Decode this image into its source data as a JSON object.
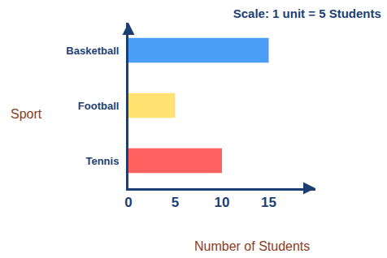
{
  "chart_data": {
    "type": "bar",
    "orientation": "horizontal",
    "title": "Scale: 1 unit = 5 Students",
    "x_label": "Number of Students",
    "y_label": "Sport",
    "categories": [
      "Basketball",
      "Football",
      "Tennis"
    ],
    "values": [
      15,
      5,
      10
    ],
    "colors": [
      "#4a9ef5",
      "#ffe270",
      "#ff6161"
    ],
    "xlim": [
      0,
      20
    ],
    "xticks": [
      0,
      5,
      10,
      15
    ],
    "grid": false
  }
}
